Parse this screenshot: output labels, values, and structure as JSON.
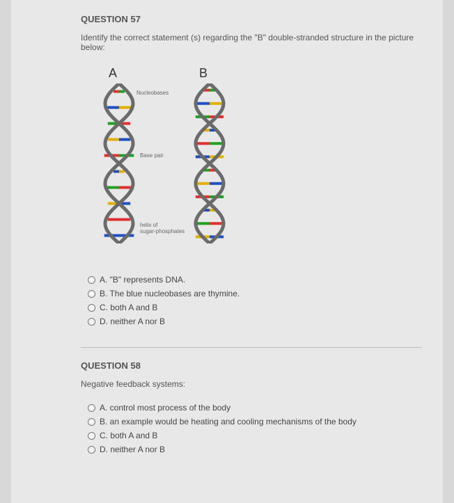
{
  "q57": {
    "title": "QUESTION 57",
    "prompt": "Identify the correct statement (s) regarding the \"B\" double-stranded structure in the picture below:",
    "labelA": "A",
    "labelB": "B",
    "annot_nucleobases": "Nucleobases",
    "annot_basepair": "Base pair",
    "annot_helix": "helix of\nsugar-phosphates",
    "options": {
      "a": "A. \"B\" represents DNA.",
      "b": "B. The blue nucleobases are thymine.",
      "c": "C. both A and B",
      "d": "D. neither A nor B"
    }
  },
  "q58": {
    "title": "QUESTION 58",
    "prompt": "Negative feedback systems:",
    "options": {
      "a": "A. control most process of the body",
      "b": "B. an example would be heating and cooling mechanisms of the body",
      "c": "C. both A and B",
      "d": "D. neither A nor B"
    }
  },
  "diagram": {
    "backbone_color": "#6b6b6b",
    "rungs_A": [
      "#e03030",
      "#2050c0",
      "#20a020",
      "#e0b000",
      "#e03030",
      "#2050c0",
      "#20a020",
      "#e0b000",
      "#e03030",
      "#2050c0"
    ],
    "rungs_B": [
      "#e03030",
      "#2050c0",
      "#20a020",
      "#e0b000",
      "#e03030",
      "#2050c0",
      "#20a020",
      "#e0b000",
      "#e03030",
      "#2050c0",
      "#20a020",
      "#e0b000"
    ]
  }
}
